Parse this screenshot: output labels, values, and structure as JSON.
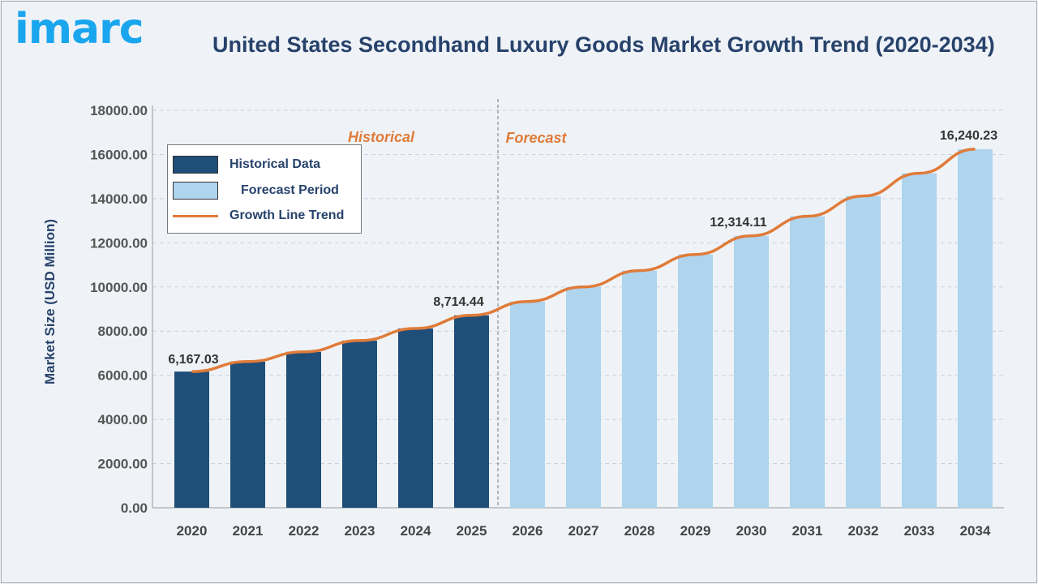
{
  "header": {
    "logo_text": "imarc",
    "title": "United States Secondhand Luxury Goods Market Growth Trend (2020-2034)"
  },
  "chart_data": {
    "type": "bar",
    "title": "United States Secondhand Luxury Goods Market Growth Trend (2020-2034)",
    "ylabel": "Market Size (USD Million)",
    "xlabel": "",
    "ylim": [
      0,
      18000
    ],
    "yticks": [
      "0.00",
      "2000.00",
      "4000.00",
      "6000.00",
      "8000.00",
      "10000.00",
      "12000.00",
      "14000.00",
      "16000.00",
      "18000.00"
    ],
    "categories": [
      "2020",
      "2021",
      "2022",
      "2023",
      "2024",
      "2025",
      "2026",
      "2027",
      "2028",
      "2029",
      "2030",
      "2031",
      "2032",
      "2033",
      "2034"
    ],
    "values": [
      6167.03,
      6620,
      7060,
      7570,
      8120,
      8714.44,
      9340,
      10000,
      10740,
      11470,
      12314.11,
      13200,
      14120,
      15150,
      16240.23
    ],
    "historical_count": 6,
    "data_labels": {
      "2020": "6,167.03",
      "2025": "8,714.44",
      "2030": "12,314.11",
      "2034": "16,240.23"
    },
    "period_labels": {
      "historical": "Historical",
      "forecast": "Forecast"
    },
    "grid": true,
    "legend": {
      "placement": "top-left",
      "entries": [
        {
          "label": "Historical Data",
          "color": "#1f4e79"
        },
        {
          "label": "Forecast Period",
          "color": "#aed4ee"
        },
        {
          "label": "Growth Line Trend",
          "color": "#e07b39"
        }
      ]
    },
    "colors": {
      "historical": "#1f4e79",
      "forecast": "#aed4ee",
      "trend": "#e07b39"
    }
  }
}
